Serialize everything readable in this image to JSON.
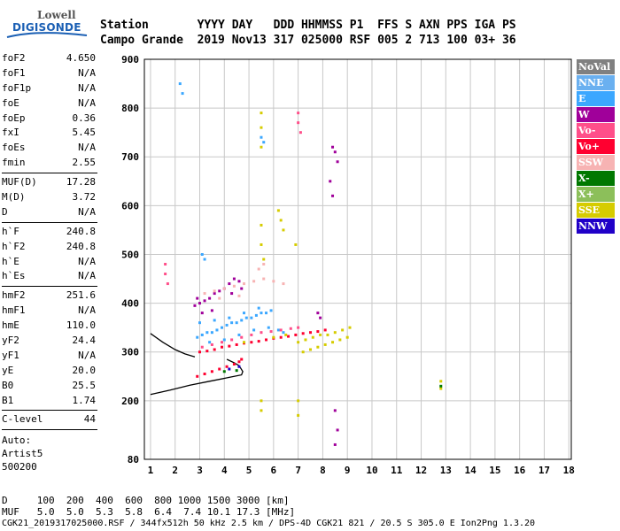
{
  "logo": {
    "line1": "Lowell",
    "line2": "DIGISONDE"
  },
  "header": {
    "row1": "Station       YYYY DAY   DDD HHMMSS P1  FFS S AXN PPS IGA PS",
    "row2": "Campo Grande  2019 Nov13 317 025000 RSF 005 2 713 100 03+ 36"
  },
  "params": [
    {
      "k": "foF2",
      "v": "4.650"
    },
    {
      "k": "foF1",
      "v": "N/A"
    },
    {
      "k": "foF1p",
      "v": "N/A"
    },
    {
      "k": "foE",
      "v": "N/A"
    },
    {
      "k": "foEp",
      "v": "0.36"
    },
    {
      "k": "fxI",
      "v": "5.45"
    },
    {
      "k": "foEs",
      "v": "N/A"
    },
    {
      "k": "fmin",
      "v": "2.55",
      "sep": true
    },
    {
      "k": "MUF(D)",
      "v": "17.28"
    },
    {
      "k": "M(D)",
      "v": "3.72"
    },
    {
      "k": "D",
      "v": "N/A",
      "sep": true
    },
    {
      "k": "h`F",
      "v": "240.8"
    },
    {
      "k": "h`F2",
      "v": "240.8"
    },
    {
      "k": "h`E",
      "v": "N/A"
    },
    {
      "k": "h`Es",
      "v": "N/A",
      "sep": true
    },
    {
      "k": "hmF2",
      "v": "251.6"
    },
    {
      "k": "hmF1",
      "v": "N/A"
    },
    {
      "k": "hmE",
      "v": "110.0"
    },
    {
      "k": "yF2",
      "v": "24.4"
    },
    {
      "k": "yF1",
      "v": "N/A"
    },
    {
      "k": "yE",
      "v": "20.0"
    },
    {
      "k": "B0",
      "v": "25.5"
    },
    {
      "k": "B1",
      "v": "1.74",
      "sep": true
    },
    {
      "k": "C-level",
      "v": "44",
      "sep": true
    }
  ],
  "auto": {
    "line1": "Auto:",
    "line2": "Artist5",
    "line3": "500200"
  },
  "legend": [
    {
      "label": "NoVal",
      "color": "#808080"
    },
    {
      "label": "NNE",
      "color": "#6ab0f0"
    },
    {
      "label": "E",
      "color": "#3ba7ff"
    },
    {
      "label": "W",
      "color": "#a0009a"
    },
    {
      "label": "Vo-",
      "color": "#ff4f8a"
    },
    {
      "label": "Vo+",
      "color": "#ff0030"
    },
    {
      "label": "SSW",
      "color": "#f7b3b3"
    },
    {
      "label": "X-",
      "color": "#007800"
    },
    {
      "label": "X+",
      "color": "#8cbf5a"
    },
    {
      "label": "SSE",
      "color": "#d6cc00"
    },
    {
      "label": "NNW",
      "color": "#2000c8"
    }
  ],
  "footer": {
    "line1": "D     100  200  400  600  800 1000 1500 3000 [km]",
    "line2": "MUF   5.0  5.0  5.3  5.8  6.4  7.4 10.1 17.3 [MHz]",
    "line3": "CGK21_2019317025000.RSF / 344fx512h 50 kHz 2.5 km / DPS-4D CGK21 821 / 20.5 S 305.0 E Ion2Png 1.3.20"
  },
  "chart_data": {
    "type": "scatter",
    "x_ticks": [
      1,
      2,
      3,
      4,
      5,
      6,
      7,
      8,
      9,
      10,
      11,
      12,
      13,
      14,
      15,
      16,
      17,
      18
    ],
    "y_ticks": [
      80,
      200,
      300,
      400,
      500,
      600,
      700,
      800,
      900
    ],
    "xlim": [
      0.75,
      18.1
    ],
    "ylim": [
      80,
      900
    ],
    "grid": true,
    "xlabel": "",
    "ylabel": "",
    "series": [
      {
        "name": "W",
        "color": "#a0009a",
        "points": [
          [
            2.8,
            395
          ],
          [
            3.0,
            400
          ],
          [
            3.2,
            405
          ],
          [
            3.4,
            410
          ],
          [
            3.6,
            420
          ],
          [
            3.8,
            425
          ],
          [
            4.0,
            430
          ],
          [
            4.2,
            440
          ],
          [
            4.4,
            450
          ],
          [
            4.6,
            445
          ],
          [
            3.1,
            380
          ],
          [
            3.5,
            385
          ],
          [
            2.9,
            410
          ],
          [
            4.3,
            420
          ],
          [
            4.7,
            430
          ],
          [
            8.4,
            720
          ],
          [
            8.5,
            710
          ],
          [
            8.6,
            690
          ],
          [
            8.3,
            650
          ],
          [
            8.4,
            620
          ],
          [
            8.5,
            180
          ],
          [
            8.6,
            140
          ],
          [
            8.5,
            110
          ],
          [
            7.8,
            380
          ],
          [
            7.9,
            370
          ]
        ]
      },
      {
        "name": "E",
        "color": "#3ba7ff",
        "points": [
          [
            2.9,
            330
          ],
          [
            3.1,
            335
          ],
          [
            3.3,
            340
          ],
          [
            3.5,
            340
          ],
          [
            3.7,
            345
          ],
          [
            3.9,
            350
          ],
          [
            4.1,
            355
          ],
          [
            4.3,
            360
          ],
          [
            4.5,
            360
          ],
          [
            4.7,
            365
          ],
          [
            4.9,
            370
          ],
          [
            5.1,
            370
          ],
          [
            5.3,
            375
          ],
          [
            5.5,
            380
          ],
          [
            5.7,
            380
          ],
          [
            5.9,
            385
          ],
          [
            3.4,
            320
          ],
          [
            4.0,
            325
          ],
          [
            4.6,
            335
          ],
          [
            5.2,
            345
          ],
          [
            5.8,
            350
          ],
          [
            6.2,
            345
          ],
          [
            6.4,
            340
          ],
          [
            3.0,
            360
          ],
          [
            3.6,
            365
          ],
          [
            4.2,
            370
          ],
          [
            4.8,
            380
          ],
          [
            5.4,
            390
          ],
          [
            2.2,
            850
          ],
          [
            2.3,
            830
          ],
          [
            3.1,
            500
          ],
          [
            3.2,
            490
          ],
          [
            5.5,
            740
          ],
          [
            5.6,
            730
          ]
        ]
      },
      {
        "name": "Vo+",
        "color": "#ff0030",
        "points": [
          [
            3.0,
            300
          ],
          [
            3.3,
            302
          ],
          [
            3.6,
            305
          ],
          [
            3.9,
            310
          ],
          [
            4.2,
            312
          ],
          [
            4.5,
            315
          ],
          [
            4.8,
            318
          ],
          [
            5.1,
            320
          ],
          [
            5.4,
            322
          ],
          [
            5.7,
            325
          ],
          [
            6.0,
            328
          ],
          [
            6.3,
            330
          ],
          [
            6.6,
            332
          ],
          [
            6.9,
            335
          ],
          [
            7.2,
            338
          ],
          [
            7.5,
            340
          ],
          [
            7.8,
            342
          ],
          [
            8.1,
            345
          ],
          [
            2.9,
            250
          ],
          [
            3.2,
            255
          ],
          [
            3.5,
            260
          ],
          [
            3.8,
            265
          ],
          [
            4.1,
            270
          ],
          [
            4.4,
            275
          ],
          [
            4.6,
            280
          ],
          [
            4.7,
            285
          ]
        ]
      },
      {
        "name": "Vo-",
        "color": "#ff4f8a",
        "points": [
          [
            3.1,
            310
          ],
          [
            3.5,
            315
          ],
          [
            3.9,
            320
          ],
          [
            4.3,
            325
          ],
          [
            4.7,
            330
          ],
          [
            5.1,
            335
          ],
          [
            5.5,
            340
          ],
          [
            5.9,
            342
          ],
          [
            6.3,
            345
          ],
          [
            6.7,
            348
          ],
          [
            7.0,
            350
          ],
          [
            1.6,
            480
          ],
          [
            1.6,
            460
          ],
          [
            1.7,
            440
          ],
          [
            7.0,
            790
          ],
          [
            7.0,
            770
          ],
          [
            7.1,
            750
          ]
        ]
      },
      {
        "name": "SSW",
        "color": "#f7b3b3",
        "points": [
          [
            3.2,
            420
          ],
          [
            3.6,
            425
          ],
          [
            4.0,
            430
          ],
          [
            4.4,
            435
          ],
          [
            4.8,
            440
          ],
          [
            5.2,
            445
          ],
          [
            5.6,
            450
          ],
          [
            6.0,
            445
          ],
          [
            6.4,
            440
          ],
          [
            5.4,
            470
          ],
          [
            5.6,
            480
          ],
          [
            3.8,
            410
          ],
          [
            4.6,
            415
          ]
        ]
      },
      {
        "name": "SSE",
        "color": "#d6cc00",
        "points": [
          [
            7.0,
            320
          ],
          [
            7.3,
            325
          ],
          [
            7.6,
            330
          ],
          [
            7.9,
            335
          ],
          [
            8.2,
            335
          ],
          [
            8.5,
            340
          ],
          [
            8.8,
            345
          ],
          [
            9.1,
            350
          ],
          [
            7.2,
            300
          ],
          [
            7.5,
            305
          ],
          [
            7.8,
            310
          ],
          [
            8.1,
            315
          ],
          [
            8.4,
            320
          ],
          [
            8.7,
            325
          ],
          [
            9.0,
            330
          ],
          [
            5.5,
            790
          ],
          [
            5.5,
            760
          ],
          [
            5.5,
            720
          ],
          [
            5.5,
            560
          ],
          [
            5.5,
            520
          ],
          [
            5.6,
            490
          ],
          [
            6.2,
            590
          ],
          [
            6.3,
            570
          ],
          [
            6.4,
            550
          ],
          [
            6.9,
            520
          ],
          [
            7.0,
            200
          ],
          [
            7.0,
            170
          ],
          [
            5.5,
            200
          ],
          [
            5.5,
            180
          ],
          [
            12.8,
            240
          ],
          [
            12.8,
            225
          ],
          [
            6.0,
            330
          ],
          [
            6.5,
            335
          ],
          [
            4.8,
            320
          ]
        ]
      },
      {
        "name": "X-",
        "color": "#007800",
        "points": [
          [
            4.0,
            260
          ],
          [
            4.5,
            262
          ],
          [
            12.8,
            230
          ]
        ]
      },
      {
        "name": "NNW",
        "color": "#2000c8",
        "points": [
          [
            4.2,
            265
          ],
          [
            4.6,
            270
          ]
        ]
      }
    ],
    "o_trace": [
      [
        1.0,
        213
      ],
      [
        1.8,
        222
      ],
      [
        2.6,
        232
      ],
      [
        3.4,
        240
      ],
      [
        4.2,
        248
      ],
      [
        4.7,
        253
      ],
      [
        4.75,
        260
      ],
      [
        4.6,
        272
      ],
      [
        4.4,
        278
      ],
      [
        4.1,
        285
      ]
    ],
    "x_trace": [
      [
        1.0,
        338
      ],
      [
        1.5,
        320
      ],
      [
        2.0,
        305
      ],
      [
        2.4,
        296
      ],
      [
        2.8,
        290
      ]
    ]
  }
}
